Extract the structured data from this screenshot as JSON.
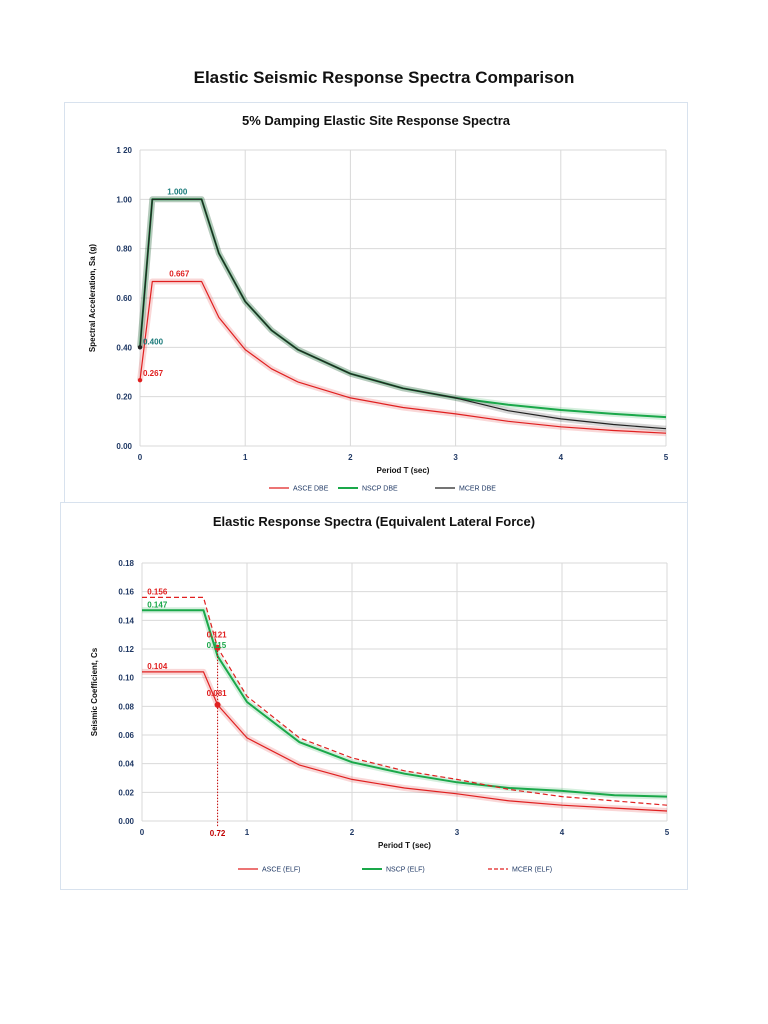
{
  "page_title": "Elastic Seismic Response Spectra Comparison",
  "chart_data": [
    {
      "type": "line",
      "title": "5% Damping Elastic Site Response Spectra",
      "xlabel": "Period  T (sec)",
      "ylabel": "Spectral Acceleration, Sa (g)",
      "xlim": [
        0,
        5
      ],
      "ylim": [
        0,
        1.2
      ],
      "xticks": [
        "0",
        "1",
        "2",
        "3",
        "4",
        "5"
      ],
      "yticks": [
        "0.00",
        "0.20",
        "0.40",
        "0.60",
        "0.80",
        "1.00",
        "1 20"
      ],
      "grid": true,
      "legend_position": "bottom",
      "series": [
        {
          "name": "ASCE DBE",
          "color": "#e02020",
          "x": [
            0,
            0.117,
            0.586,
            0.75,
            1,
            1.25,
            1.5,
            2,
            2.5,
            3,
            3.5,
            4,
            4.5,
            5
          ],
          "y": [
            0.267,
            0.667,
            0.667,
            0.521,
            0.391,
            0.313,
            0.26,
            0.195,
            0.156,
            0.13,
            0.1,
            0.078,
            0.063,
            0.052
          ]
        },
        {
          "name": "NSCP DBE",
          "color": "#1aa84a",
          "x": [
            0,
            0.117,
            0.586,
            0.75,
            1,
            1.25,
            1.5,
            2,
            2.5,
            3,
            3.5,
            4,
            4.5,
            5
          ],
          "y": [
            0.4,
            1.0,
            1.0,
            0.781,
            0.586,
            0.469,
            0.391,
            0.293,
            0.234,
            0.195,
            0.167,
            0.146,
            0.13,
            0.117
          ]
        },
        {
          "name": "MCER DBE",
          "color": "#222222",
          "x": [
            0,
            0.117,
            0.586,
            0.75,
            1,
            1.25,
            1.5,
            2,
            2.5,
            3,
            3.5,
            4,
            4.5,
            5
          ],
          "y": [
            0.4,
            1.0,
            1.0,
            0.781,
            0.586,
            0.469,
            0.391,
            0.293,
            0.234,
            0.195,
            0.143,
            0.11,
            0.087,
            0.07
          ]
        }
      ],
      "annotations": [
        {
          "text": "1.000",
          "x": 0.117,
          "y": 1.0,
          "color": "#1a7a7a"
        },
        {
          "text": "0.667",
          "x": 0.117,
          "y": 0.667,
          "color": "#e02020"
        },
        {
          "text": "0.400",
          "x": 0,
          "y": 0.4,
          "color": "#1a7a7a"
        },
        {
          "text": "0.267",
          "x": 0,
          "y": 0.267,
          "color": "#e02020"
        }
      ]
    },
    {
      "type": "line",
      "title": "Elastic Response Spectra (Equivalent Lateral Force)",
      "xlabel": "Period  T (sec)",
      "ylabel": "Seismic Coefficient, Cs",
      "xlim": [
        0,
        5
      ],
      "ylim": [
        0,
        0.18
      ],
      "xticks": [
        "0",
        "1",
        "2",
        "3",
        "4",
        "5"
      ],
      "yticks": [
        "0.00",
        "0.02",
        "0.04",
        "0.06",
        "0.08",
        "0.10",
        "0.12",
        "0.14",
        "0.16",
        "0.18"
      ],
      "grid": true,
      "legend_position": "bottom",
      "series": [
        {
          "name": "ASCE (ELF)",
          "color": "#e02020",
          "x": [
            0,
            0.586,
            0.72,
            1,
            1.5,
            2,
            2.5,
            3,
            3.5,
            4,
            4.5,
            5
          ],
          "y": [
            0.104,
            0.104,
            0.081,
            0.058,
            0.039,
            0.029,
            0.023,
            0.019,
            0.014,
            0.011,
            0.009,
            0.007
          ]
        },
        {
          "name": "NSCP (ELF)",
          "color": "#1aa84a",
          "x": [
            0,
            0.586,
            0.72,
            1,
            1.5,
            2,
            2.5,
            3,
            3.5,
            4,
            4.5,
            5
          ],
          "y": [
            0.147,
            0.147,
            0.115,
            0.083,
            0.055,
            0.041,
            0.033,
            0.027,
            0.023,
            0.021,
            0.018,
            0.017
          ]
        },
        {
          "name": "MCER (ELF)",
          "color": "#e02020",
          "dashed": true,
          "x": [
            0,
            0.586,
            0.72,
            1,
            1.5,
            2,
            2.5,
            3,
            3.5,
            4,
            4.5,
            5
          ],
          "y": [
            0.156,
            0.156,
            0.121,
            0.087,
            0.058,
            0.044,
            0.035,
            0.029,
            0.022,
            0.017,
            0.014,
            0.011
          ]
        }
      ],
      "markers": [
        {
          "x": 0.72,
          "y": 0.121
        },
        {
          "x": 0.72,
          "y": 0.081
        }
      ],
      "vline": {
        "x": 0.72,
        "label": "0.72"
      },
      "annotations": [
        {
          "text": "0.156",
          "x": 0.05,
          "y": 0.156,
          "color": "#e02020"
        },
        {
          "text": "0.147",
          "x": 0.05,
          "y": 0.147,
          "color": "#1aa84a"
        },
        {
          "text": "0.104",
          "x": 0.05,
          "y": 0.104,
          "color": "#e02020"
        },
        {
          "text": "0.121",
          "x": 0.72,
          "y": 0.121,
          "color": "#e02020"
        },
        {
          "text": "0.115",
          "x": 0.72,
          "y": 0.115,
          "color": "#1aa84a"
        },
        {
          "text": "0.081",
          "x": 0.72,
          "y": 0.081,
          "color": "#e02020"
        }
      ]
    }
  ]
}
